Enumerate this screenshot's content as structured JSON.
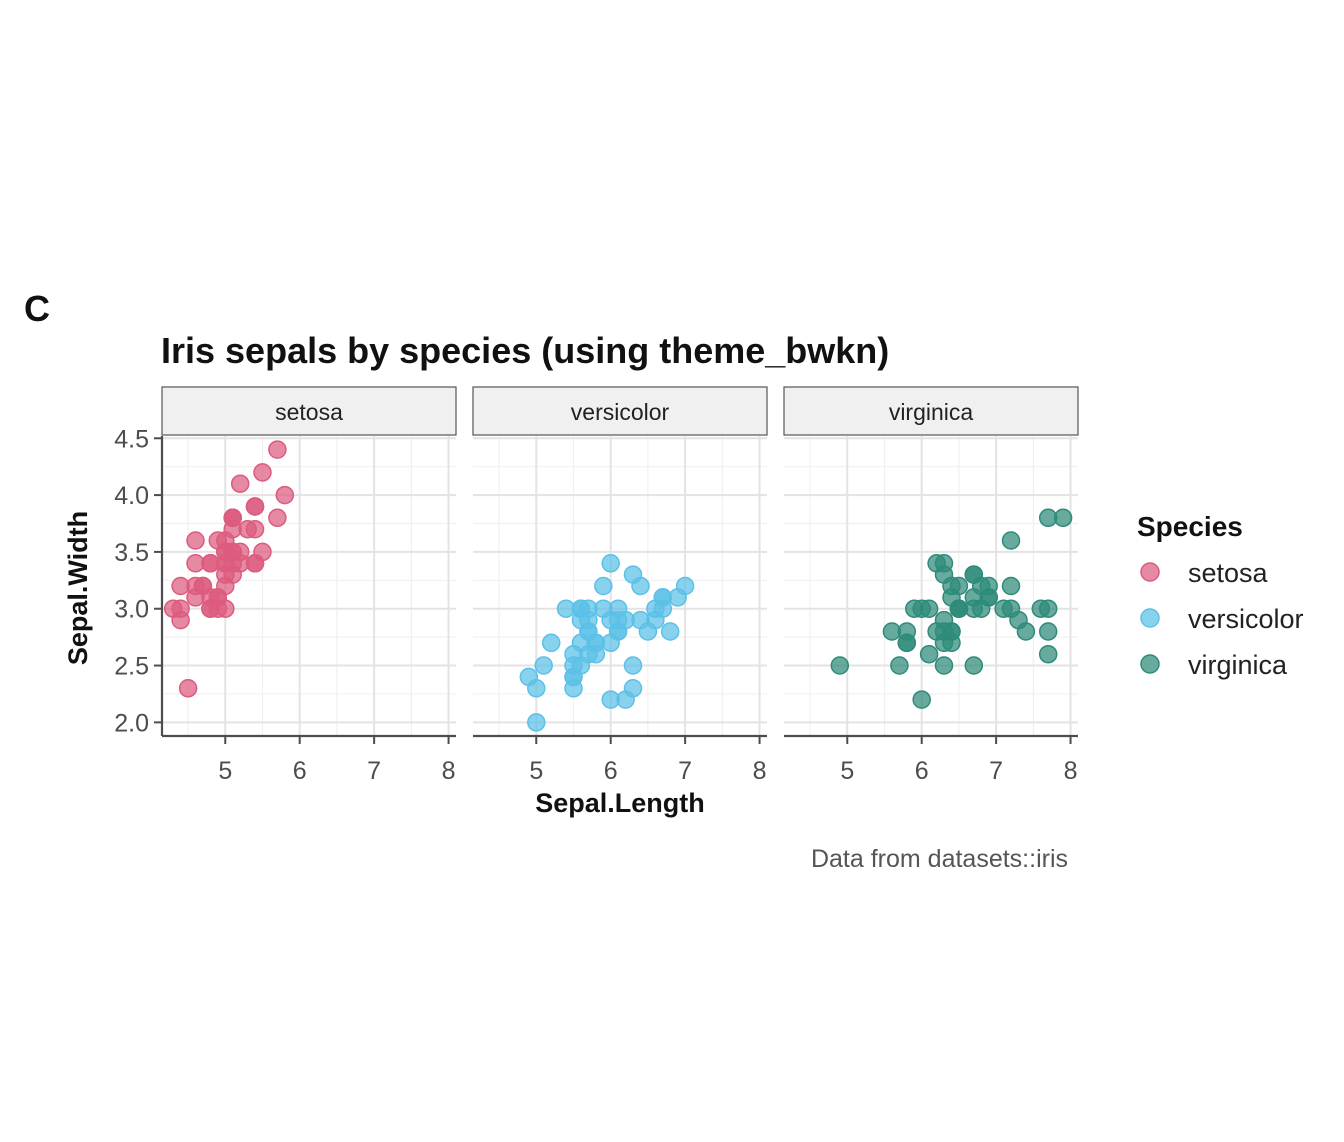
{
  "panel_label": "C",
  "chart_data": {
    "type": "scatter",
    "title": "Iris sepals by species (using theme_bwkn)",
    "xlabel": "Sepal.Length",
    "ylabel": "Sepal.Width",
    "caption": "Data from datasets::iris",
    "xlim": [
      4.15,
      8.1
    ],
    "ylim": [
      1.88,
      4.52
    ],
    "x_ticks": [
      5,
      6,
      7,
      8
    ],
    "x_tick_labels": [
      "5",
      "6",
      "7",
      "8"
    ],
    "y_ticks": [
      2.0,
      2.5,
      3.0,
      3.5,
      4.0,
      4.5
    ],
    "y_tick_labels": [
      "2.0",
      "2.5",
      "3.0",
      "3.5",
      "4.0",
      "4.5"
    ],
    "grid": true,
    "legend": {
      "title": "Species",
      "placement": "right"
    },
    "facets": [
      "setosa",
      "versicolor",
      "virginica"
    ],
    "series": [
      {
        "name": "setosa",
        "color": "#DC5B7E",
        "x": [
          5.1,
          4.9,
          4.7,
          4.6,
          5.0,
          5.4,
          4.6,
          5.0,
          4.4,
          4.9,
          5.4,
          4.8,
          4.8,
          4.3,
          5.8,
          5.7,
          5.4,
          5.1,
          5.7,
          5.1,
          5.4,
          5.1,
          4.6,
          5.1,
          4.8,
          5.0,
          5.0,
          5.2,
          5.2,
          4.7,
          4.8,
          5.4,
          5.2,
          5.5,
          4.9,
          5.0,
          5.5,
          4.9,
          4.4,
          5.1,
          5.0,
          4.5,
          4.4,
          5.0,
          5.1,
          4.8,
          5.1,
          4.6,
          5.3,
          5.0
        ],
        "y": [
          3.5,
          3.0,
          3.2,
          3.1,
          3.6,
          3.9,
          3.4,
          3.4,
          2.9,
          3.1,
          3.7,
          3.4,
          3.0,
          3.0,
          4.0,
          4.4,
          3.9,
          3.5,
          3.8,
          3.8,
          3.4,
          3.7,
          3.6,
          3.3,
          3.4,
          3.0,
          3.4,
          3.5,
          3.4,
          3.2,
          3.1,
          3.4,
          4.1,
          4.2,
          3.1,
          3.2,
          3.5,
          3.6,
          3.0,
          3.4,
          3.5,
          2.3,
          3.2,
          3.5,
          3.8,
          3.0,
          3.8,
          3.2,
          3.7,
          3.3
        ]
      },
      {
        "name": "versicolor",
        "color": "#5CC0E8",
        "x": [
          7.0,
          6.4,
          6.9,
          5.5,
          6.5,
          5.7,
          6.3,
          4.9,
          6.6,
          5.2,
          5.0,
          5.9,
          6.0,
          6.1,
          5.6,
          6.7,
          5.6,
          5.8,
          6.2,
          5.6,
          5.9,
          6.1,
          6.3,
          6.1,
          6.4,
          6.6,
          6.8,
          6.7,
          6.0,
          5.7,
          5.5,
          5.5,
          5.8,
          6.0,
          5.4,
          6.0,
          6.7,
          6.3,
          5.6,
          5.5,
          5.5,
          6.1,
          5.8,
          5.0,
          5.6,
          5.7,
          5.7,
          6.2,
          5.1,
          5.7
        ],
        "y": [
          3.2,
          3.2,
          3.1,
          2.3,
          2.8,
          2.8,
          3.3,
          2.4,
          2.9,
          2.7,
          2.0,
          3.0,
          2.2,
          2.9,
          2.9,
          3.1,
          3.0,
          2.7,
          2.2,
          2.5,
          3.2,
          2.8,
          2.5,
          2.8,
          2.9,
          3.0,
          2.8,
          3.0,
          2.9,
          2.6,
          2.4,
          2.4,
          2.7,
          2.7,
          3.0,
          3.4,
          3.1,
          2.3,
          3.0,
          2.5,
          2.6,
          3.0,
          2.6,
          2.3,
          2.7,
          3.0,
          2.9,
          2.9,
          2.5,
          2.8
        ]
      },
      {
        "name": "virginica",
        "color": "#2E8B79",
        "x": [
          6.3,
          5.8,
          7.1,
          6.3,
          6.5,
          7.6,
          4.9,
          7.3,
          6.7,
          7.2,
          6.5,
          6.4,
          6.8,
          5.7,
          5.8,
          6.4,
          6.5,
          7.7,
          7.7,
          6.0,
          6.9,
          5.6,
          7.7,
          6.3,
          6.7,
          7.2,
          6.2,
          6.1,
          6.4,
          7.2,
          7.4,
          7.9,
          6.4,
          6.3,
          6.1,
          7.7,
          6.3,
          6.4,
          6.0,
          6.9,
          6.7,
          6.9,
          5.8,
          6.8,
          6.7,
          6.7,
          6.3,
          6.5,
          6.2,
          5.9
        ],
        "y": [
          3.3,
          2.7,
          3.0,
          2.9,
          3.0,
          3.0,
          2.5,
          2.9,
          2.5,
          3.6,
          3.2,
          2.7,
          3.0,
          2.5,
          2.8,
          3.2,
          3.0,
          3.8,
          2.6,
          2.2,
          3.2,
          2.8,
          2.8,
          2.7,
          3.3,
          3.2,
          2.8,
          3.0,
          2.8,
          3.0,
          2.8,
          3.8,
          2.8,
          2.8,
          2.6,
          3.0,
          3.4,
          3.1,
          3.0,
          3.1,
          3.1,
          3.1,
          2.7,
          3.2,
          3.3,
          3.0,
          2.5,
          3.0,
          3.4,
          3.0
        ]
      }
    ]
  }
}
